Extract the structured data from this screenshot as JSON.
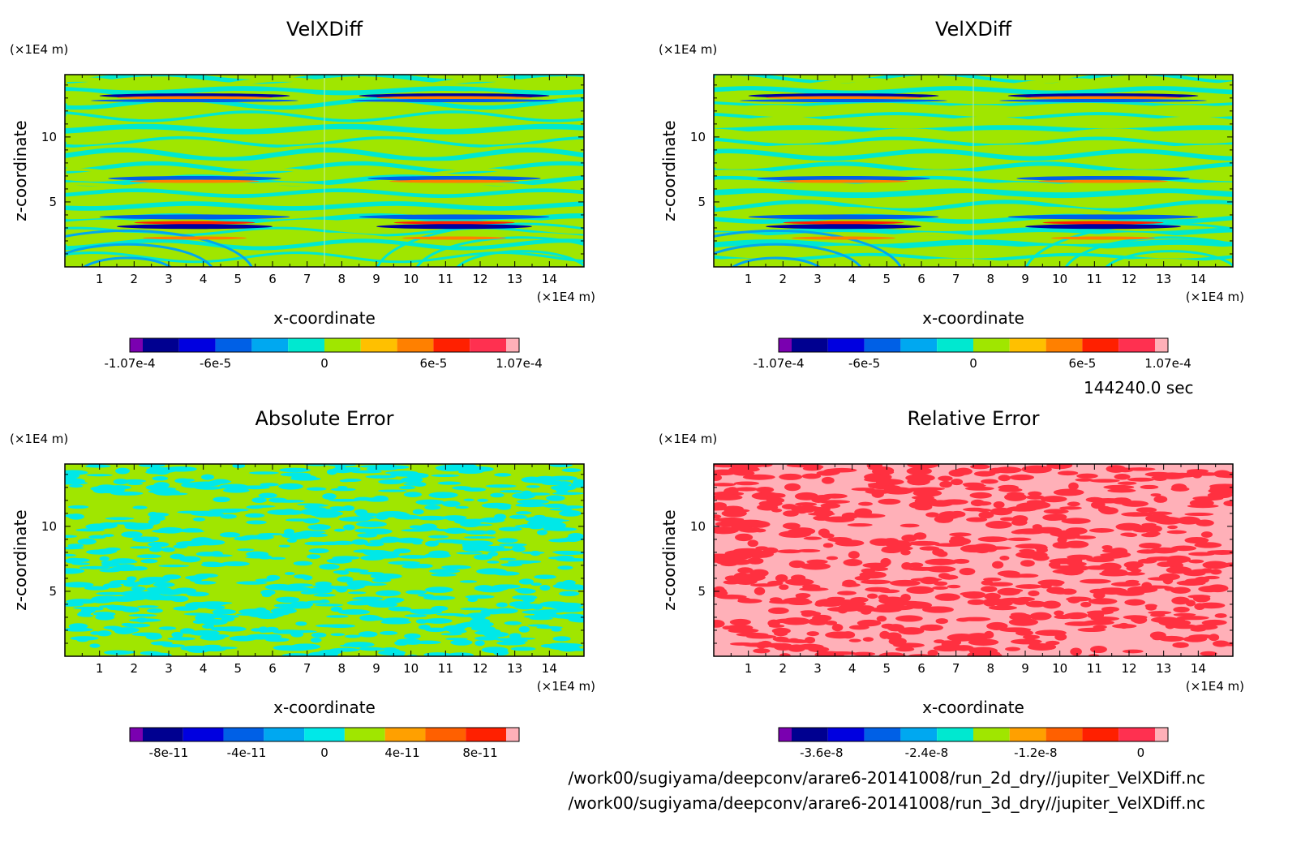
{
  "figure": {
    "time_label": "144240.0 sec",
    "files": [
      "/work00/sugiyama/deepconv/arare6-20141008/run_2d_dry//jupiter_VelXDiff.nc",
      "/work00/sugiyama/deepconv/arare6-20141008/run_3d_dry//jupiter_VelXDiff.nc"
    ]
  },
  "chart_data": [
    {
      "type": "heatmap",
      "title": "VelXDiff",
      "xlabel": "x-coordinate",
      "ylabel": "z-coordinate",
      "x_unit": "(×1E4 m)",
      "y_unit": "(×1E4 m)",
      "xlim": [
        0,
        15
      ],
      "ylim": [
        0,
        14.8
      ],
      "xticks": [
        1,
        2,
        3,
        4,
        5,
        6,
        7,
        8,
        9,
        10,
        11,
        12,
        13,
        14
      ],
      "yticks": [
        5,
        10
      ],
      "pattern": "bands",
      "colorbar": {
        "colors": [
          "#7a00b0",
          "#000090",
          "#0000e0",
          "#0060e6",
          "#00a8f0",
          "#00e8d0",
          "#a0e600",
          "#ffc000",
          "#ff8000",
          "#ff2000",
          "#ff3050",
          "#ffb0b8"
        ],
        "tick_labels": [
          "-1.07e-4",
          "-6e-5",
          "0",
          "6e-5",
          "1.07e-4"
        ],
        "tick_positions": [
          0,
          0.22,
          0.5,
          0.78,
          1
        ]
      }
    },
    {
      "type": "heatmap",
      "title": "VelXDiff",
      "xlabel": "x-coordinate",
      "ylabel": "z-coordinate",
      "x_unit": "(×1E4 m)",
      "y_unit": "(×1E4 m)",
      "xlim": [
        0,
        15
      ],
      "ylim": [
        0,
        14.8
      ],
      "xticks": [
        1,
        2,
        3,
        4,
        5,
        6,
        7,
        8,
        9,
        10,
        11,
        12,
        13,
        14
      ],
      "yticks": [
        5,
        10
      ],
      "pattern": "bands",
      "colorbar": {
        "colors": [
          "#7a00b0",
          "#000090",
          "#0000e0",
          "#0060e6",
          "#00a8f0",
          "#00e8d0",
          "#a0e600",
          "#ffc000",
          "#ff8000",
          "#ff2000",
          "#ff3050",
          "#ffb0b8"
        ],
        "tick_labels": [
          "-1.07e-4",
          "-6e-5",
          "0",
          "6e-5",
          "1.07e-4"
        ],
        "tick_positions": [
          0,
          0.22,
          0.5,
          0.78,
          1
        ]
      }
    },
    {
      "type": "heatmap",
      "title": "Absolute Error",
      "xlabel": "x-coordinate",
      "ylabel": "z-coordinate",
      "x_unit": "(×1E4 m)",
      "y_unit": "(×1E4 m)",
      "xlim": [
        0,
        15
      ],
      "ylim": [
        0,
        14.8
      ],
      "xticks": [
        1,
        2,
        3,
        4,
        5,
        6,
        7,
        8,
        9,
        10,
        11,
        12,
        13,
        14
      ],
      "yticks": [
        5,
        10
      ],
      "pattern": "noise_cyan_green",
      "colorbar": {
        "colors": [
          "#7a00b0",
          "#000090",
          "#0000e0",
          "#0060e6",
          "#00a8f0",
          "#00e8e8",
          "#a0e600",
          "#ffa000",
          "#ff6000",
          "#ff2000",
          "#ffb0b8"
        ],
        "tick_labels": [
          "-8e-11",
          "-4e-11",
          "0",
          "4e-11",
          "8e-11"
        ],
        "tick_positions": [
          0.1,
          0.3,
          0.5,
          0.7,
          0.9
        ]
      }
    },
    {
      "type": "heatmap",
      "title": "Relative Error",
      "xlabel": "x-coordinate",
      "ylabel": "z-coordinate",
      "x_unit": "(×1E4 m)",
      "y_unit": "(×1E4 m)",
      "xlim": [
        0,
        15
      ],
      "ylim": [
        0,
        14.8
      ],
      "xticks": [
        1,
        2,
        3,
        4,
        5,
        6,
        7,
        8,
        9,
        10,
        11,
        12,
        13,
        14
      ],
      "yticks": [
        5,
        10
      ],
      "pattern": "noise_red_pink",
      "colorbar": {
        "colors": [
          "#7a00b0",
          "#000090",
          "#0000e0",
          "#0060e6",
          "#00a8f0",
          "#00e8d0",
          "#a0e600",
          "#ffa000",
          "#ff6000",
          "#ff2000",
          "#ff3050",
          "#ffb0b8"
        ],
        "tick_labels": [
          "-3.6e-8",
          "-2.4e-8",
          "-1.2e-8",
          "0"
        ],
        "tick_positions": [
          0.11,
          0.38,
          0.66,
          0.93
        ]
      }
    }
  ]
}
